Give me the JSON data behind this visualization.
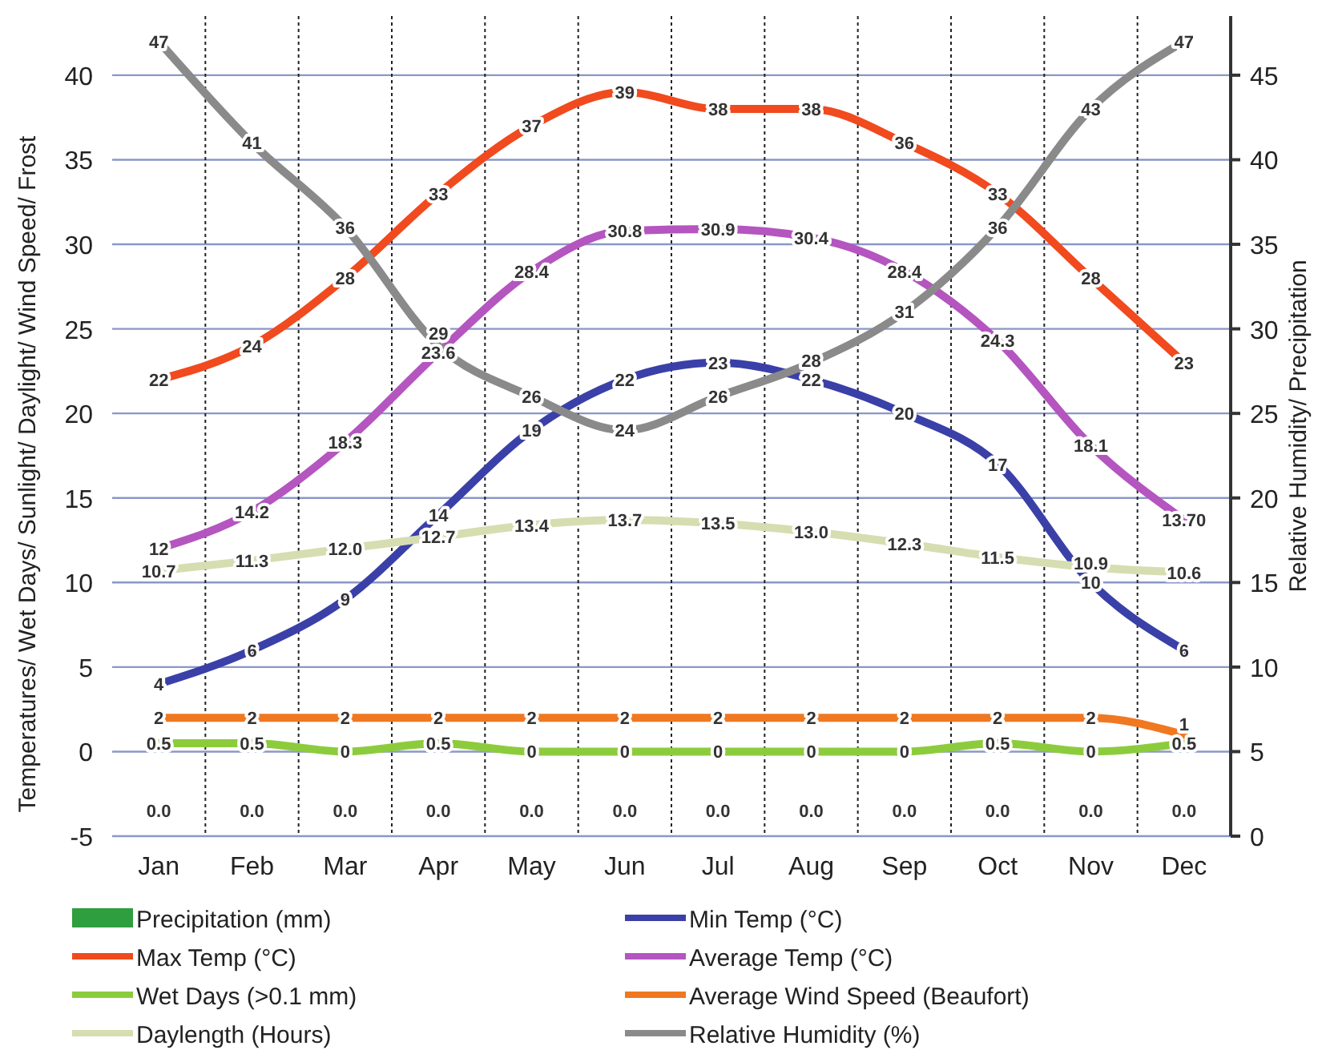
{
  "chart_data": {
    "type": "line",
    "categories": [
      "Jan",
      "Feb",
      "Mar",
      "Apr",
      "May",
      "Jun",
      "Jul",
      "Aug",
      "Sep",
      "Oct",
      "Nov",
      "Dec"
    ],
    "ylabel": "Temperatures/ Wet Days/ Sunlight/ Daylight/ Wind Speed/ Frost",
    "y2label": "Relative Humidity/ Precipitation",
    "ylim": [
      -5,
      43.5
    ],
    "yticks": [
      -5,
      0,
      5,
      10,
      15,
      20,
      25,
      30,
      35,
      40
    ],
    "y2lim": [
      0,
      48.5
    ],
    "y2ticks": [
      0,
      5,
      10,
      15,
      20,
      25,
      30,
      35,
      40,
      45
    ],
    "grid": true,
    "legend": "bottom",
    "data_labels": true,
    "marker": "none",
    "series": [
      {
        "name": "Precipitation (mm)",
        "type": "bar",
        "axis": "y2",
        "color": "#2e9e3e",
        "values": [
          0,
          0,
          0,
          0,
          0,
          0,
          0,
          0,
          0,
          0,
          0,
          0
        ],
        "value_labels": [
          "0.0",
          "0.0",
          "0.0",
          "0.0",
          "0.0",
          "0.0",
          "0.0",
          "0.0",
          "0.0",
          "0.0",
          "0.0",
          "0.0"
        ]
      },
      {
        "name": "Min Temp (°C)",
        "color": "#3a40a8",
        "values": [
          4,
          6,
          9,
          14,
          19,
          22,
          23,
          22,
          20,
          17,
          10,
          6
        ]
      },
      {
        "name": "Max Temp (°C)",
        "color": "#f04a1e",
        "values": [
          22,
          24,
          28,
          33,
          37,
          39,
          38,
          38,
          36,
          33,
          28,
          23
        ]
      },
      {
        "name": "Average Temp (°C)",
        "color": "#b455c0",
        "values": [
          12,
          14.2,
          18.3,
          23.6,
          28.4,
          30.8,
          30.9,
          30.4,
          28.4,
          24.3,
          18.1,
          13.7
        ],
        "value_labels": [
          "12",
          "14.2",
          "18.3",
          "23.6",
          "28.4",
          "30.8",
          "30.9",
          "30.4",
          "28.4",
          "24.3",
          "18.1",
          "13.70"
        ]
      },
      {
        "name": "Wet Days (>0.1 mm)",
        "color": "#8ccc3c",
        "values": [
          0.5,
          0.5,
          0,
          0.5,
          0,
          0,
          0,
          0,
          0,
          0.5,
          0,
          0.5
        ]
      },
      {
        "name": "Average Wind Speed (Beaufort)",
        "color": "#f07820",
        "values": [
          2,
          2,
          2,
          2,
          2,
          2,
          2,
          2,
          2,
          2,
          2,
          1
        ]
      },
      {
        "name": "Daylength (Hours)",
        "color": "#d6ddb0",
        "values": [
          10.7,
          11.3,
          12.0,
          12.7,
          13.4,
          13.7,
          13.5,
          13.0,
          12.3,
          11.5,
          10.9,
          10.6
        ],
        "value_labels": [
          "10.7",
          "11.3",
          "12.0",
          "12.7",
          "13.4",
          "13.7",
          "13.5",
          "13.0",
          "12.3",
          "11.5",
          "10.9",
          "10.6"
        ]
      },
      {
        "name": "Relative Humidity (%)",
        "axis": "y2",
        "color": "#8a8a8a",
        "values": [
          47,
          41,
          36,
          29,
          26,
          24,
          26,
          28,
          31,
          36,
          43,
          47
        ]
      }
    ]
  }
}
